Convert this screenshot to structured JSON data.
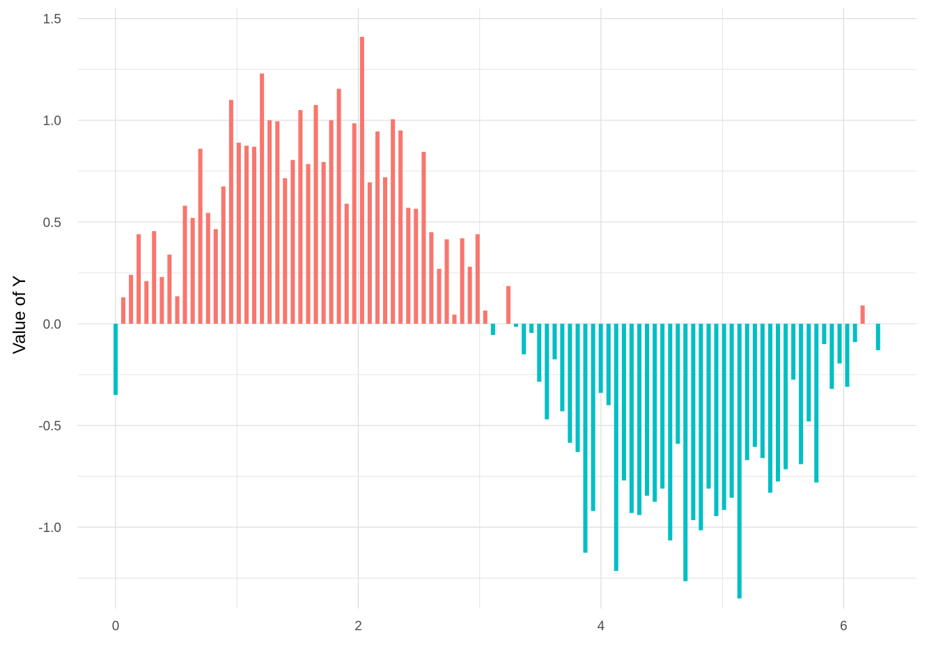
{
  "chart_data": {
    "type": "bar",
    "title": "",
    "xlabel": "",
    "ylabel": "Value of Y",
    "xlim": [
      -0.31,
      6.6
    ],
    "ylim": [
      -1.4,
      1.55
    ],
    "x_ticks": [
      0,
      2,
      4,
      6
    ],
    "x_tick_labels": [
      "0",
      "2",
      "4",
      "6"
    ],
    "y_ticks": [
      -1.0,
      -0.5,
      0.0,
      0.5,
      1.0,
      1.5
    ],
    "y_tick_labels": [
      "-1.0",
      "-0.5",
      "0.0",
      "0.5",
      "1.0",
      "1.5"
    ],
    "grid": true,
    "legend": "none",
    "colors": {
      "positive": "#F8766D",
      "negative": "#00BFC4",
      "grid": "#dcdcdc",
      "background": "#ffffff"
    },
    "x": [
      0.0,
      0.063,
      0.127,
      0.19,
      0.254,
      0.317,
      0.381,
      0.444,
      0.508,
      0.571,
      0.635,
      0.698,
      0.762,
      0.825,
      0.888,
      0.952,
      1.015,
      1.079,
      1.142,
      1.206,
      1.269,
      1.333,
      1.396,
      1.46,
      1.523,
      1.587,
      1.65,
      1.714,
      1.777,
      1.84,
      1.904,
      1.967,
      2.031,
      2.094,
      2.158,
      2.221,
      2.285,
      2.348,
      2.412,
      2.475,
      2.539,
      2.602,
      2.666,
      2.729,
      2.792,
      2.856,
      2.919,
      2.983,
      3.046,
      3.11,
      3.173,
      3.237,
      3.3,
      3.364,
      3.427,
      3.491,
      3.554,
      3.618,
      3.681,
      3.744,
      3.808,
      3.871,
      3.935,
      3.998,
      4.062,
      4.125,
      4.189,
      4.252,
      4.316,
      4.379,
      4.443,
      4.506,
      4.57,
      4.633,
      4.696,
      4.76,
      4.823,
      4.887,
      4.95,
      5.014,
      5.077,
      5.141,
      5.204,
      5.268,
      5.331,
      5.395,
      5.458,
      5.522,
      5.585,
      5.648,
      5.712,
      5.775,
      5.839,
      5.902,
      5.966,
      6.029,
      6.093,
      6.156,
      6.22,
      6.283
    ],
    "values": [
      -0.35,
      0.13,
      0.24,
      0.44,
      0.21,
      0.455,
      0.23,
      0.34,
      0.135,
      0.58,
      0.52,
      0.86,
      0.545,
      0.465,
      0.675,
      1.1,
      0.89,
      0.875,
      0.87,
      1.23,
      1.0,
      0.995,
      0.715,
      0.805,
      1.05,
      0.785,
      1.075,
      0.795,
      1.0,
      1.155,
      0.59,
      0.985,
      1.41,
      0.695,
      0.945,
      0.72,
      1.005,
      0.95,
      0.57,
      0.565,
      0.845,
      0.45,
      0.27,
      0.415,
      0.045,
      0.42,
      0.28,
      0.44,
      0.065,
      -0.055,
      0.0,
      0.185,
      -0.015,
      -0.15,
      -0.045,
      -0.285,
      -0.47,
      -0.175,
      -0.43,
      -0.585,
      -0.63,
      -1.125,
      -0.92,
      -0.34,
      -0.4,
      -1.215,
      -0.77,
      -0.93,
      -0.94,
      -0.845,
      -0.875,
      -0.81,
      -1.065,
      -0.59,
      -1.265,
      -0.965,
      -1.015,
      -0.81,
      -0.945,
      -0.915,
      -0.855,
      -1.35,
      -0.67,
      -0.605,
      -0.66,
      -0.83,
      -0.775,
      -0.715,
      -0.275,
      -0.69,
      -0.48,
      -0.78,
      -0.1,
      -0.32,
      -0.195,
      -0.31,
      -0.09,
      0.09,
      0.0,
      -0.13
    ]
  }
}
